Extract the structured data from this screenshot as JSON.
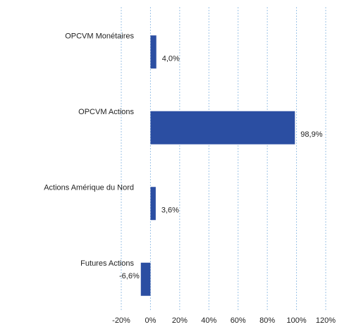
{
  "chart_data": {
    "type": "hbar",
    "categories": [
      "OPCVM Monétaires",
      "OPCVM Actions",
      "Actions Amérique du Nord",
      "Futures Actions"
    ],
    "values": [
      4.0,
      98.9,
      3.6,
      -6.6
    ],
    "value_labels": [
      "4,0%",
      "98,9%",
      "3,6%",
      "-6,6%"
    ],
    "color": "#2b4ea2",
    "xlim": [
      -20,
      120
    ],
    "xticks": [
      {
        "value": -20,
        "label": "-20%"
      },
      {
        "value": 0,
        "label": "0%"
      },
      {
        "value": 20,
        "label": "20%"
      },
      {
        "value": 40,
        "label": "40%"
      },
      {
        "value": 60,
        "label": "60%"
      },
      {
        "value": 80,
        "label": "80%"
      },
      {
        "value": 100,
        "label": "100%"
      },
      {
        "value": 120,
        "label": "120%"
      }
    ],
    "grid": true
  }
}
